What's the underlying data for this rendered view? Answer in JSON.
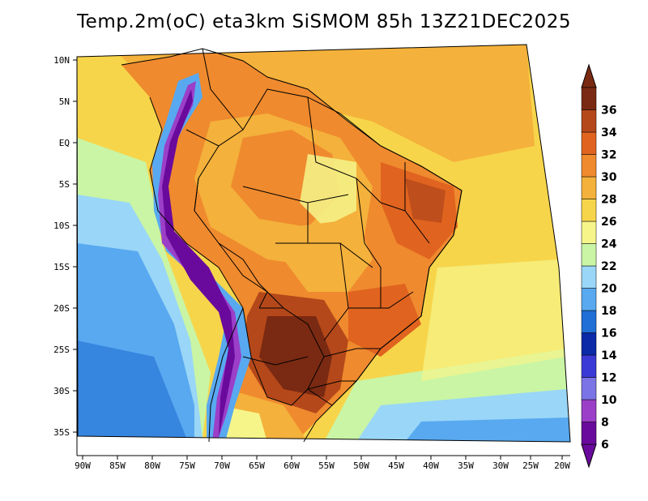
{
  "title": "Temp.2m(oC) eta3km SiSMOM 85h 13Z21DEC2025",
  "map": {
    "variable": "2 m temperature",
    "units": "oC",
    "lon_ticks": [
      "90W",
      "85W",
      "80W",
      "75W",
      "70W",
      "65W",
      "60W",
      "55W",
      "50W",
      "45W",
      "40W",
      "35W",
      "30W",
      "25W",
      "20W"
    ],
    "lat_ticks": [
      "10N",
      "5N",
      "EQ",
      "5S",
      "10S",
      "15S",
      "20S",
      "25S",
      "30S",
      "35S"
    ]
  },
  "colorbar": {
    "levels": [
      "6",
      "8",
      "10",
      "12",
      "14",
      "16",
      "18",
      "20",
      "22",
      "24",
      "26",
      "28",
      "30",
      "32",
      "34",
      "36"
    ],
    "colors": [
      "#6a0a9c",
      "#9b3fc8",
      "#7b74e6",
      "#3a3ad6",
      "#0a2aa8",
      "#1f6fd6",
      "#58a9f0",
      "#9ad6f7",
      "#c9f5a5",
      "#f5f58a",
      "#f7d54a",
      "#f4b13b",
      "#ef8a2e",
      "#e0641f",
      "#b5481a",
      "#7a2a12"
    ]
  }
}
